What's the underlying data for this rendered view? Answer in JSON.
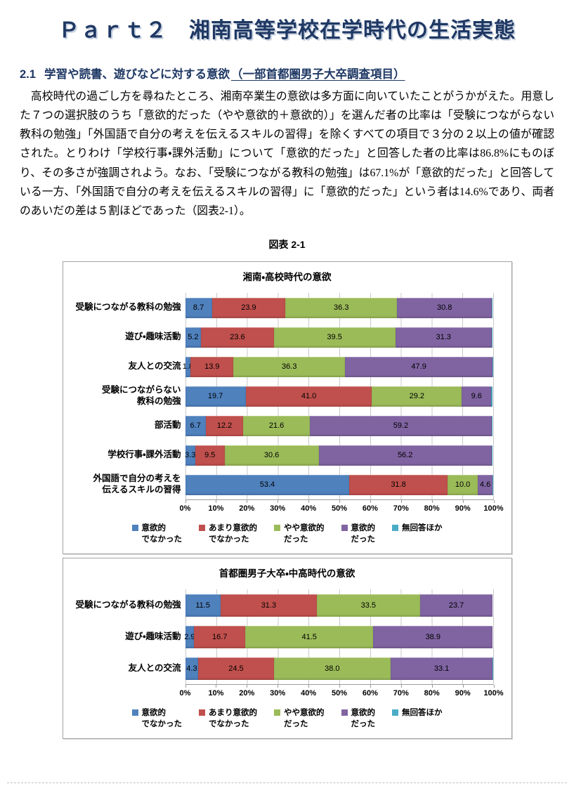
{
  "page": {
    "title": "Ｐａｒｔ２　湘南高等学校在学時代の生活実態",
    "section": {
      "number": "2.1",
      "title": "学習や読書、遊びなどに対する意欲",
      "note": "（一部首都圏男子大卒調査項目）"
    },
    "paragraph": "　高校時代の過ごし方を尋ねたところ、湘南卒業生の意欲は多方面に向いていたことがうかがえた。用意した７つの選択肢のうち「意欲的だった（やや意欲的＋意欲的）」を選んだ者の比率は「受験につながらない教科の勉強」「外国語で自分の考えを伝えるスキルの習得」を除くすべての項目で３分の２以上の値が確認された。とりわけ「学校行事・課外活動」について「意欲的だった」と回答した者の比率は86.8%にものぼり、その多さが強調されよう。なお、「受験につながる教科の勉強」は67.1%が「意欲的だった」と回答している一方、「外国語で自分の考えを伝えるスキルの習得」に「意欲的だった」という者は14.6%であり、両者のあいだの差は５割ほどであった（図表2-1）。",
    "figure_caption": "図表 2-1"
  },
  "colors": {
    "heading_navy": "#1F3864",
    "series_blue": "#4F81BD",
    "series_red": "#C0504D",
    "series_green": "#9BBB59",
    "series_purple": "#8064A2",
    "series_cyan": "#4BACC6",
    "gridline": "#C9C9C9",
    "chart_border": "#A3A3A3"
  },
  "legend": [
    {
      "key": "not-motivated",
      "color": "#4F81BD",
      "lines": "意欲的\nでなかった"
    },
    {
      "key": "not-very-motivated",
      "color": "#C0504D",
      "lines": "あまり意欲的\nでなかった"
    },
    {
      "key": "somewhat-motivated",
      "color": "#9BBB59",
      "lines": "やや意欲的\nだった"
    },
    {
      "key": "motivated",
      "color": "#8064A2",
      "lines": "意欲的\nだった"
    },
    {
      "key": "no-answer",
      "color": "#4BACC6",
      "lines": "無回答ほか"
    }
  ],
  "chart_data": [
    {
      "type": "bar",
      "stacked": true,
      "orientation": "horizontal",
      "title": "湘南・高校時代の意欲",
      "categories": [
        "受験につながる教科の勉強",
        "遊び・趣味活動",
        "友人との交流",
        "受験につながらない\n教科の勉強",
        "部活動",
        "学校行事・課外活動",
        "外国語で自分の考えを\n伝えるスキルの習得"
      ],
      "series": [
        {
          "name": "意欲的でなかった",
          "key": "not-motivated",
          "color": "#4F81BD",
          "values": [
            8.7,
            5.2,
            1.8,
            19.7,
            6.7,
            3.3,
            53.4
          ]
        },
        {
          "name": "あまり意欲的でなかった",
          "key": "not-very-motivated",
          "color": "#C0504D",
          "values": [
            23.9,
            23.6,
            13.9,
            41.0,
            12.2,
            9.5,
            31.8
          ]
        },
        {
          "name": "やや意欲的だった",
          "key": "somewhat-motivated",
          "color": "#9BBB59",
          "values": [
            36.3,
            39.5,
            36.3,
            29.2,
            21.6,
            30.6,
            10.0
          ]
        },
        {
          "name": "意欲的だった",
          "key": "motivated",
          "color": "#8064A2",
          "values": [
            30.8,
            31.3,
            47.9,
            9.6,
            59.2,
            56.2,
            4.6
          ]
        },
        {
          "name": "無回答ほか",
          "key": "no-answer",
          "color": "#4BACC6",
          "values": [
            0.3,
            0.4,
            0.1,
            0.5,
            0.3,
            0.4,
            0.2
          ]
        }
      ],
      "xlim": [
        0,
        100
      ],
      "x_ticks": [
        "0%",
        "10%",
        "20%",
        "30%",
        "40%",
        "50%",
        "60%",
        "70%",
        "80%",
        "90%",
        "100%"
      ],
      "grid": true,
      "legend_position": "bottom",
      "value_labels": true
    },
    {
      "type": "bar",
      "stacked": true,
      "orientation": "horizontal",
      "title": "首都圏男子大卒・中高時代の意欲",
      "categories": [
        "受験につながる教科の勉強",
        "遊び・趣味活動",
        "友人との交流"
      ],
      "series": [
        {
          "name": "意欲的でなかった",
          "key": "not-motivated",
          "color": "#4F81BD",
          "values": [
            11.5,
            2.9,
            4.3
          ]
        },
        {
          "name": "あまり意欲的でなかった",
          "key": "not-very-motivated",
          "color": "#C0504D",
          "values": [
            31.3,
            16.7,
            24.5
          ]
        },
        {
          "name": "やや意欲的だった",
          "key": "somewhat-motivated",
          "color": "#9BBB59",
          "values": [
            33.5,
            41.5,
            38.0
          ]
        },
        {
          "name": "意欲的だった",
          "key": "motivated",
          "color": "#8064A2",
          "values": [
            23.7,
            38.9,
            33.1
          ]
        },
        {
          "name": "無回答ほか",
          "key": "no-answer",
          "color": "#4BACC6",
          "values": [
            0.0,
            0.0,
            0.1
          ]
        }
      ],
      "xlim": [
        0,
        100
      ],
      "x_ticks": [
        "0%",
        "10%",
        "20%",
        "30%",
        "40%",
        "50%",
        "60%",
        "70%",
        "80%",
        "90%",
        "100%"
      ],
      "grid": true,
      "legend_position": "bottom",
      "value_labels": true
    }
  ]
}
